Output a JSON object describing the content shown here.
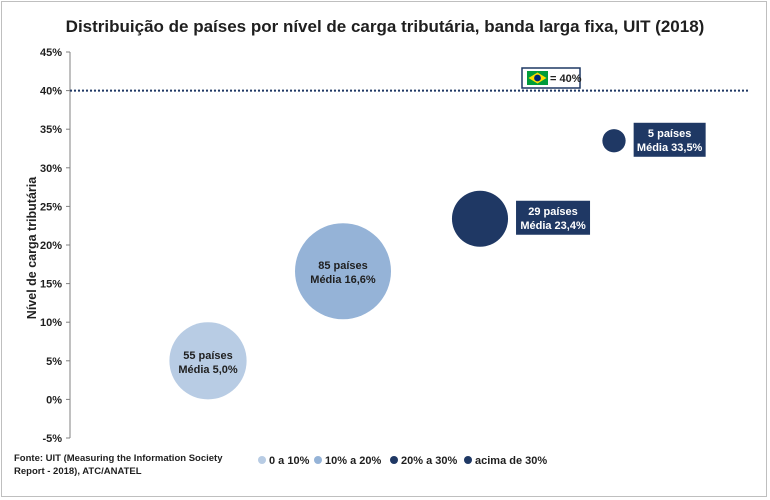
{
  "chart_data": {
    "type": "scatter",
    "title": "Distribuição de países por nível de carga tributária, banda larga fixa, UIT (2018)",
    "ylabel": "Nível de carga tributária",
    "ylim": [
      -5,
      45
    ],
    "yticks": [
      -5,
      0,
      5,
      10,
      15,
      20,
      25,
      30,
      35,
      40,
      45
    ],
    "ytick_labels": [
      "-5%",
      "0%",
      "5%",
      "10%",
      "15%",
      "20%",
      "25%",
      "30%",
      "35%",
      "40%",
      "45%"
    ],
    "xlim": [
      0,
      5
    ],
    "grid": false,
    "legend_position": "bottom",
    "series": [
      {
        "name": "0 a 10%",
        "x": 1,
        "y": 5.0,
        "countries": 55,
        "label_count": "55 países",
        "label_mean": "Média 5,0%",
        "color": "#b8cce4"
      },
      {
        "name": "10% a 20%",
        "x": 2,
        "y": 16.6,
        "countries": 85,
        "label_count": "85 países",
        "label_mean": "Média 16,6%",
        "color": "#95b3d7"
      },
      {
        "name": "20% a 30%",
        "x": 3,
        "y": 23.4,
        "countries": 29,
        "label_count": "29 países",
        "label_mean": "Média 23,4%",
        "color": "#1f3864"
      },
      {
        "name": "acima de 30%",
        "x": 4,
        "y": 33.5,
        "countries": 5,
        "label_count": "5 países",
        "label_mean": "Média 33,5%",
        "color": "#1f3864"
      }
    ],
    "reference_line": {
      "y": 40,
      "label": "= 40%",
      "flag": "brazil-flag"
    }
  },
  "source": {
    "line1": "Fonte: UIT (Measuring the Information Society",
    "line2": "Report - 2018), ATC/ANATEL"
  }
}
